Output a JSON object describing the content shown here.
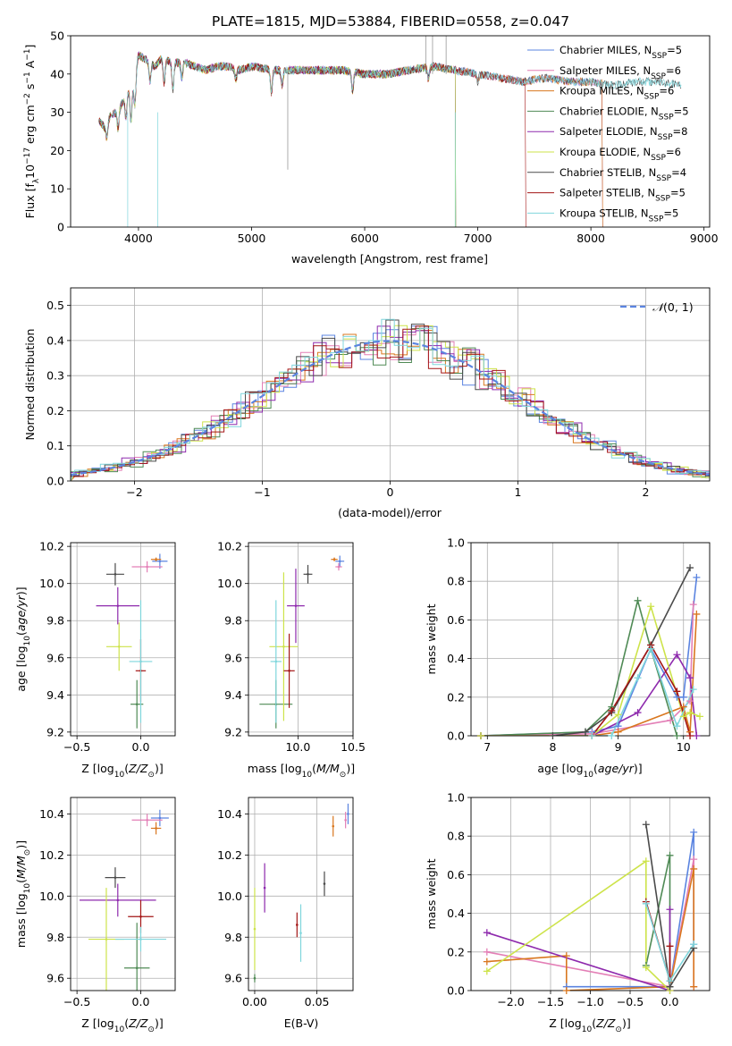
{
  "figure": {
    "title": "PLATE=1815, MJD=53884, FIBERID=0558, z=0.047"
  },
  "colors": {
    "Chabrier MILES": "#5b84e0",
    "Salpeter MILES": "#e37fb6",
    "Kroupa MILES": "#d9771f",
    "Chabrier ELODIE": "#4f8a55",
    "Salpeter ELODIE": "#8e2aad",
    "Kroupa ELODIE": "#cde34a",
    "Chabrier STELIB": "#4a4a4a",
    "Salpeter STELIB": "#a31515",
    "Kroupa STELIB": "#7fd6dc",
    "normal": "#5b84e0"
  },
  "chart_data": [
    {
      "id": "spectrum",
      "type": "line",
      "title": "PLATE=1815, MJD=53884, FIBERID=0558, z=0.047",
      "xlabel": "wavelength [Angstrom, rest frame]",
      "ylabel": "Flux [f_λ 10^-17 erg cm^-2 s^-1 A^-1]",
      "xlim": [
        3400,
        9050
      ],
      "ylim": [
        0,
        50
      ],
      "xticks": [
        4000,
        5000,
        6000,
        7000,
        8000,
        9000
      ],
      "yticks": [
        0,
        10,
        20,
        30,
        40,
        50
      ],
      "grid": false,
      "legend_position": "top-right",
      "spectrum_x": [
        3650,
        3700,
        3750,
        3800,
        3850,
        3900,
        3950,
        4000,
        4050,
        4100,
        4150,
        4200,
        4300,
        4400,
        4500,
        4600,
        4700,
        4800,
        4900,
        5000,
        5200,
        5400,
        5600,
        5800,
        6000,
        6200,
        6400,
        6600,
        6800,
        7000,
        7200,
        7400,
        7600,
        7800,
        8000,
        8200,
        8400,
        8600,
        8800
      ],
      "spectrum_y": [
        28,
        26,
        29,
        30,
        32,
        35,
        37,
        45,
        44,
        43,
        42,
        44,
        43,
        43,
        42,
        41,
        42,
        42,
        41,
        42,
        41,
        41,
        41,
        41,
        40,
        40,
        41,
        42,
        41,
        40,
        39,
        38,
        39,
        38,
        38,
        37,
        38,
        38,
        37
      ],
      "series": [
        {
          "name": "Chabrier MILES, N_SSP=5",
          "label": "Chabrier MILES",
          "nssp": "5",
          "xmax": 8100
        },
        {
          "name": "Salpeter MILES, N_SSP=6",
          "label": "Salpeter MILES",
          "nssp": "6",
          "xmax": 8100
        },
        {
          "name": "Kroupa MILES, N_SSP=6",
          "label": "Kroupa MILES",
          "nssp": "6",
          "xmax": 8100
        },
        {
          "name": "Chabrier ELODIE, N_SSP=5",
          "label": "Chabrier ELODIE",
          "nssp": "5",
          "xmax": 6800
        },
        {
          "name": "Salpeter ELODIE, N_SSP=8",
          "label": "Salpeter ELODIE",
          "nssp": "8",
          "xmax": 6800
        },
        {
          "name": "Kroupa ELODIE, N_SSP=6",
          "label": "Kroupa ELODIE",
          "nssp": "6",
          "xmax": 6800
        },
        {
          "name": "Chabrier STELIB, N_SSP=4",
          "label": "Chabrier STELIB",
          "nssp": "4",
          "xmax": 8800
        },
        {
          "name": "Salpeter STELIB, N_SSP=5",
          "label": "Salpeter STELIB",
          "nssp": "5",
          "xmax": 7420
        },
        {
          "name": "Kroupa STELIB, N_SSP=5",
          "label": "Kroupa STELIB",
          "nssp": "5",
          "xmax": 8800
        }
      ]
    },
    {
      "id": "residuals",
      "type": "bar",
      "xlabel": "(data-model)/error",
      "ylabel": "Normed distribution",
      "xlim": [
        -2.5,
        2.5
      ],
      "ylim": [
        0,
        0.55
      ],
      "xticks": [
        -2,
        -1,
        0,
        1,
        2
      ],
      "yticks": [
        0.0,
        0.1,
        0.2,
        0.3,
        0.4,
        0.5
      ],
      "grid": true,
      "legend": [
        {
          "name": "N(0,1)",
          "label_main": "𝒩",
          "label_rest": "(0, 1)"
        }
      ],
      "legend_position": "top-right",
      "bin_width": 0.1,
      "normal": {
        "mean": 0,
        "sigma": 1
      }
    },
    {
      "id": "age-vs-z",
      "type": "scatter",
      "xlabel": "Z [log10(Z/Z_sun)]",
      "ylabel": "age [log10(age/yr)]",
      "xlim": [
        -0.55,
        0.27
      ],
      "ylim": [
        9.18,
        10.22
      ],
      "xticks": [
        -0.5,
        0.0
      ],
      "yticks": [
        9.2,
        9.4,
        9.6,
        9.8,
        10.0,
        10.2
      ],
      "grid": true,
      "points": [
        {
          "series": "Chabrier MILES",
          "x": 0.15,
          "y": 10.12,
          "ex": 0.06,
          "ey": 0.04
        },
        {
          "series": "Salpeter MILES",
          "x": 0.05,
          "y": 10.09,
          "ex": 0.12,
          "ey": 0.03
        },
        {
          "series": "Kroupa MILES",
          "x": 0.12,
          "y": 10.13,
          "ex": 0.04,
          "ey": 0.01
        },
        {
          "series": "Chabrier ELODIE",
          "x": -0.03,
          "y": 9.35,
          "ex": 0.05,
          "ey": 0.13
        },
        {
          "series": "Salpeter ELODIE",
          "x": -0.18,
          "y": 9.88,
          "ex": 0.17,
          "ey": 0.1
        },
        {
          "series": "Kroupa ELODIE",
          "x": -0.17,
          "y": 9.66,
          "ex": 0.1,
          "ey": 0.13
        },
        {
          "series": "Chabrier STELIB",
          "x": -0.2,
          "y": 10.05,
          "ex": 0.07,
          "ey": 0.06
        },
        {
          "series": "Salpeter STELIB",
          "x": 0.0,
          "y": 9.53,
          "ex": 0.04,
          "ey": 0.17
        },
        {
          "series": "Kroupa STELIB",
          "x": 0.0,
          "y": 9.58,
          "ex": 0.09,
          "ey": 0.33
        }
      ]
    },
    {
      "id": "age-vs-mass",
      "type": "scatter",
      "xlabel": "mass [log10(M/M_sun)]",
      "ylabel": "",
      "xlim": [
        9.55,
        10.5
      ],
      "ylim": [
        9.18,
        10.22
      ],
      "xticks": [
        10.0,
        10.5
      ],
      "yticks": [
        9.2,
        9.4,
        9.6,
        9.8,
        10.0,
        10.2
      ],
      "grid": true,
      "points": [
        {
          "series": "Chabrier MILES",
          "x": 10.38,
          "y": 10.12,
          "ex": 0.04,
          "ey": 0.03
        },
        {
          "series": "Salpeter MILES",
          "x": 10.37,
          "y": 10.09,
          "ex": 0.03,
          "ey": 0.02
        },
        {
          "series": "Kroupa MILES",
          "x": 10.33,
          "y": 10.13,
          "ex": 0.03,
          "ey": 0.01
        },
        {
          "series": "Chabrier ELODIE",
          "x": 9.8,
          "y": 9.35,
          "ex": 0.15,
          "ey": 0.13
        },
        {
          "series": "Salpeter ELODIE",
          "x": 9.98,
          "y": 9.88,
          "ex": 0.08,
          "ey": 0.2
        },
        {
          "series": "Kroupa ELODIE",
          "x": 9.87,
          "y": 9.66,
          "ex": 0.13,
          "ey": 0.4
        },
        {
          "series": "Chabrier STELIB",
          "x": 10.09,
          "y": 10.05,
          "ex": 0.04,
          "ey": 0.05
        },
        {
          "series": "Salpeter STELIB",
          "x": 9.92,
          "y": 9.53,
          "ex": 0.05,
          "ey": 0.2
        },
        {
          "series": "Kroupa STELIB",
          "x": 9.8,
          "y": 9.58,
          "ex": 0.05,
          "ey": 0.33
        }
      ]
    },
    {
      "id": "weight-vs-age",
      "type": "line",
      "xlabel": "age [log10(age/yr)]",
      "ylabel": "mass weight",
      "xlim": [
        6.75,
        10.4
      ],
      "ylim": [
        0,
        1
      ],
      "xticks": [
        7,
        8,
        9,
        10
      ],
      "yticks": [
        0.0,
        0.2,
        0.4,
        0.6,
        0.8,
        1.0
      ],
      "grid": true,
      "series": [
        {
          "name": "Chabrier MILES",
          "x": [
            6.9,
            8.6,
            9.0,
            9.5,
            9.9,
            10.0,
            10.2
          ],
          "y": [
            0.0,
            0.02,
            0.05,
            0.45,
            0.2,
            0.2,
            0.82
          ]
        },
        {
          "name": "Salpeter MILES",
          "x": [
            6.9,
            8.6,
            9.8,
            10.1,
            10.15
          ],
          "y": [
            0.0,
            0.01,
            0.08,
            0.18,
            0.68
          ]
        },
        {
          "name": "Kroupa MILES",
          "x": [
            6.9,
            8.6,
            9.0,
            10.0,
            10.1,
            10.2
          ],
          "y": [
            0.0,
            0.0,
            0.02,
            0.15,
            0.02,
            0.63
          ]
        },
        {
          "name": "Chabrier ELODIE",
          "x": [
            6.9,
            8.5,
            8.9,
            9.3,
            9.5,
            9.9
          ],
          "y": [
            0.0,
            0.02,
            0.15,
            0.7,
            0.45,
            0.0
          ]
        },
        {
          "name": "Salpeter ELODIE",
          "x": [
            6.9,
            8.6,
            9.3,
            9.9,
            10.1,
            10.2
          ],
          "y": [
            0.0,
            0.0,
            0.12,
            0.42,
            0.3,
            0.0
          ]
        },
        {
          "name": "Kroupa ELODIE",
          "x": [
            6.9,
            8.6,
            9.0,
            9.5,
            10.0,
            10.1,
            10.25
          ],
          "y": [
            0.0,
            0.0,
            0.11,
            0.67,
            0.1,
            0.12,
            0.1
          ]
        },
        {
          "name": "Chabrier STELIB",
          "x": [
            8.0,
            8.5,
            8.9,
            9.5,
            10.1
          ],
          "y": [
            0.0,
            0.02,
            0.12,
            0.47,
            0.87
          ]
        },
        {
          "name": "Salpeter STELIB",
          "x": [
            8.6,
            8.9,
            9.5,
            9.9,
            10.1
          ],
          "y": [
            0.0,
            0.13,
            0.47,
            0.23,
            0.0
          ]
        },
        {
          "name": "Kroupa STELIB",
          "x": [
            8.6,
            8.9,
            9.3,
            9.5,
            9.9,
            10.15
          ],
          "y": [
            0.0,
            0.0,
            0.3,
            0.45,
            0.05,
            0.24
          ]
        }
      ]
    },
    {
      "id": "mass-vs-z",
      "type": "scatter",
      "xlabel": "Z [log10(Z/Z_sun)]",
      "ylabel": "mass [log10(M/M_sun)]",
      "xlim": [
        -0.55,
        0.27
      ],
      "ylim": [
        9.54,
        10.48
      ],
      "xticks": [
        -0.5,
        0.0
      ],
      "yticks": [
        9.6,
        9.8,
        10.0,
        10.2,
        10.4
      ],
      "grid": true,
      "points": [
        {
          "series": "Chabrier MILES",
          "x": 0.15,
          "y": 10.38,
          "ex": 0.07,
          "ey": 0.04
        },
        {
          "series": "Salpeter MILES",
          "x": 0.05,
          "y": 10.37,
          "ex": 0.12,
          "ey": 0.03
        },
        {
          "series": "Kroupa MILES",
          "x": 0.12,
          "y": 10.33,
          "ex": 0.04,
          "ey": 0.03
        },
        {
          "series": "Chabrier ELODIE",
          "x": -0.03,
          "y": 9.65,
          "ex": 0.1,
          "ey": 0.22
        },
        {
          "series": "Salpeter ELODIE",
          "x": -0.18,
          "y": 9.98,
          "ex": 0.3,
          "ey": 0.08
        },
        {
          "series": "Kroupa ELODIE",
          "x": -0.27,
          "y": 9.79,
          "ex": 0.14,
          "ey": 0.25
        },
        {
          "series": "Chabrier STELIB",
          "x": -0.2,
          "y": 10.09,
          "ex": 0.08,
          "ey": 0.05
        },
        {
          "series": "Salpeter STELIB",
          "x": 0.0,
          "y": 9.9,
          "ex": 0.1,
          "ey": 0.08
        },
        {
          "series": "Kroupa STELIB",
          "x": 0.0,
          "y": 9.79,
          "ex": 0.2,
          "ey": 0.06
        }
      ]
    },
    {
      "id": "mass-vs-ebv",
      "type": "scatter",
      "xlabel": "E(B-V)",
      "ylabel": "",
      "xlim": [
        -0.005,
        0.079
      ],
      "ylim": [
        9.54,
        10.48
      ],
      "xticks": [
        0.0,
        0.05
      ],
      "yticks": [
        9.6,
        9.8,
        10.0,
        10.2,
        10.4
      ],
      "grid": true,
      "points": [
        {
          "series": "Chabrier MILES",
          "x": 0.075,
          "y": 10.4,
          "ex": 0,
          "ey": 0.05
        },
        {
          "series": "Salpeter MILES",
          "x": 0.073,
          "y": 10.37,
          "ex": 0,
          "ey": 0.04
        },
        {
          "series": "Kroupa MILES",
          "x": 0.063,
          "y": 10.34,
          "ex": 0,
          "ey": 0.05
        },
        {
          "series": "Chabrier ELODIE",
          "x": 0.0,
          "y": 9.6,
          "ex": 0,
          "ey": 0.02
        },
        {
          "series": "Salpeter ELODIE",
          "x": 0.008,
          "y": 10.04,
          "ex": 0,
          "ey": 0.12
        },
        {
          "series": "Kroupa ELODIE",
          "x": 0.0,
          "y": 9.84,
          "ex": 0,
          "ey": 0.2
        },
        {
          "series": "Chabrier STELIB",
          "x": 0.056,
          "y": 10.06,
          "ex": 0,
          "ey": 0.06
        },
        {
          "series": "Salpeter STELIB",
          "x": 0.034,
          "y": 9.86,
          "ex": 0,
          "ey": 0.06
        },
        {
          "series": "Kroupa STELIB",
          "x": 0.037,
          "y": 9.82,
          "ex": 0,
          "ey": 0.14
        }
      ]
    },
    {
      "id": "weight-vs-z",
      "type": "line",
      "xlabel": "Z [log10(Z/Z_sun)]",
      "ylabel": "mass weight",
      "xlim": [
        -2.5,
        0.5
      ],
      "ylim": [
        0,
        1
      ],
      "xticks": [
        -2.0,
        -1.5,
        -1.0,
        -0.5,
        0.0
      ],
      "yticks": [
        0.0,
        0.2,
        0.4,
        0.6,
        0.8,
        1.0
      ],
      "grid": true,
      "series": [
        {
          "name": "Chabrier MILES",
          "x": [
            -1.3,
            0.0,
            0.3,
            0.3
          ],
          "y": [
            0.02,
            0.02,
            0.82,
            0.24
          ]
        },
        {
          "name": "Salpeter MILES",
          "x": [
            -2.3,
            0.0,
            0.3,
            0.3
          ],
          "y": [
            0.2,
            0.02,
            0.68,
            0.02
          ]
        },
        {
          "name": "Kroupa MILES",
          "x": [
            -2.3,
            -1.3,
            -1.3,
            0.0,
            0.3,
            0.3
          ],
          "y": [
            0.15,
            0.18,
            0.0,
            0.02,
            0.63,
            0.02
          ]
        },
        {
          "name": "Chabrier ELODIE",
          "x": [
            -0.3,
            0.0,
            0.0
          ],
          "y": [
            0.13,
            0.7,
            0.02
          ]
        },
        {
          "name": "Salpeter ELODIE",
          "x": [
            -2.3,
            0.0,
            0.0
          ],
          "y": [
            0.3,
            0.0,
            0.42
          ]
        },
        {
          "name": "Kroupa ELODIE",
          "x": [
            -2.3,
            -0.3,
            -0.3,
            0.0
          ],
          "y": [
            0.1,
            0.67,
            0.12,
            0.0
          ]
        },
        {
          "name": "Chabrier STELIB",
          "x": [
            -0.3,
            0.0,
            0.3
          ],
          "y": [
            0.86,
            0.02,
            0.22
          ]
        },
        {
          "name": "Salpeter STELIB",
          "x": [
            -0.3,
            0.0,
            0.0
          ],
          "y": [
            0.46,
            0.05,
            0.23
          ]
        },
        {
          "name": "Kroupa STELIB",
          "x": [
            -0.3,
            0.0,
            0.3
          ],
          "y": [
            0.45,
            0.05,
            0.24
          ]
        }
      ]
    }
  ]
}
